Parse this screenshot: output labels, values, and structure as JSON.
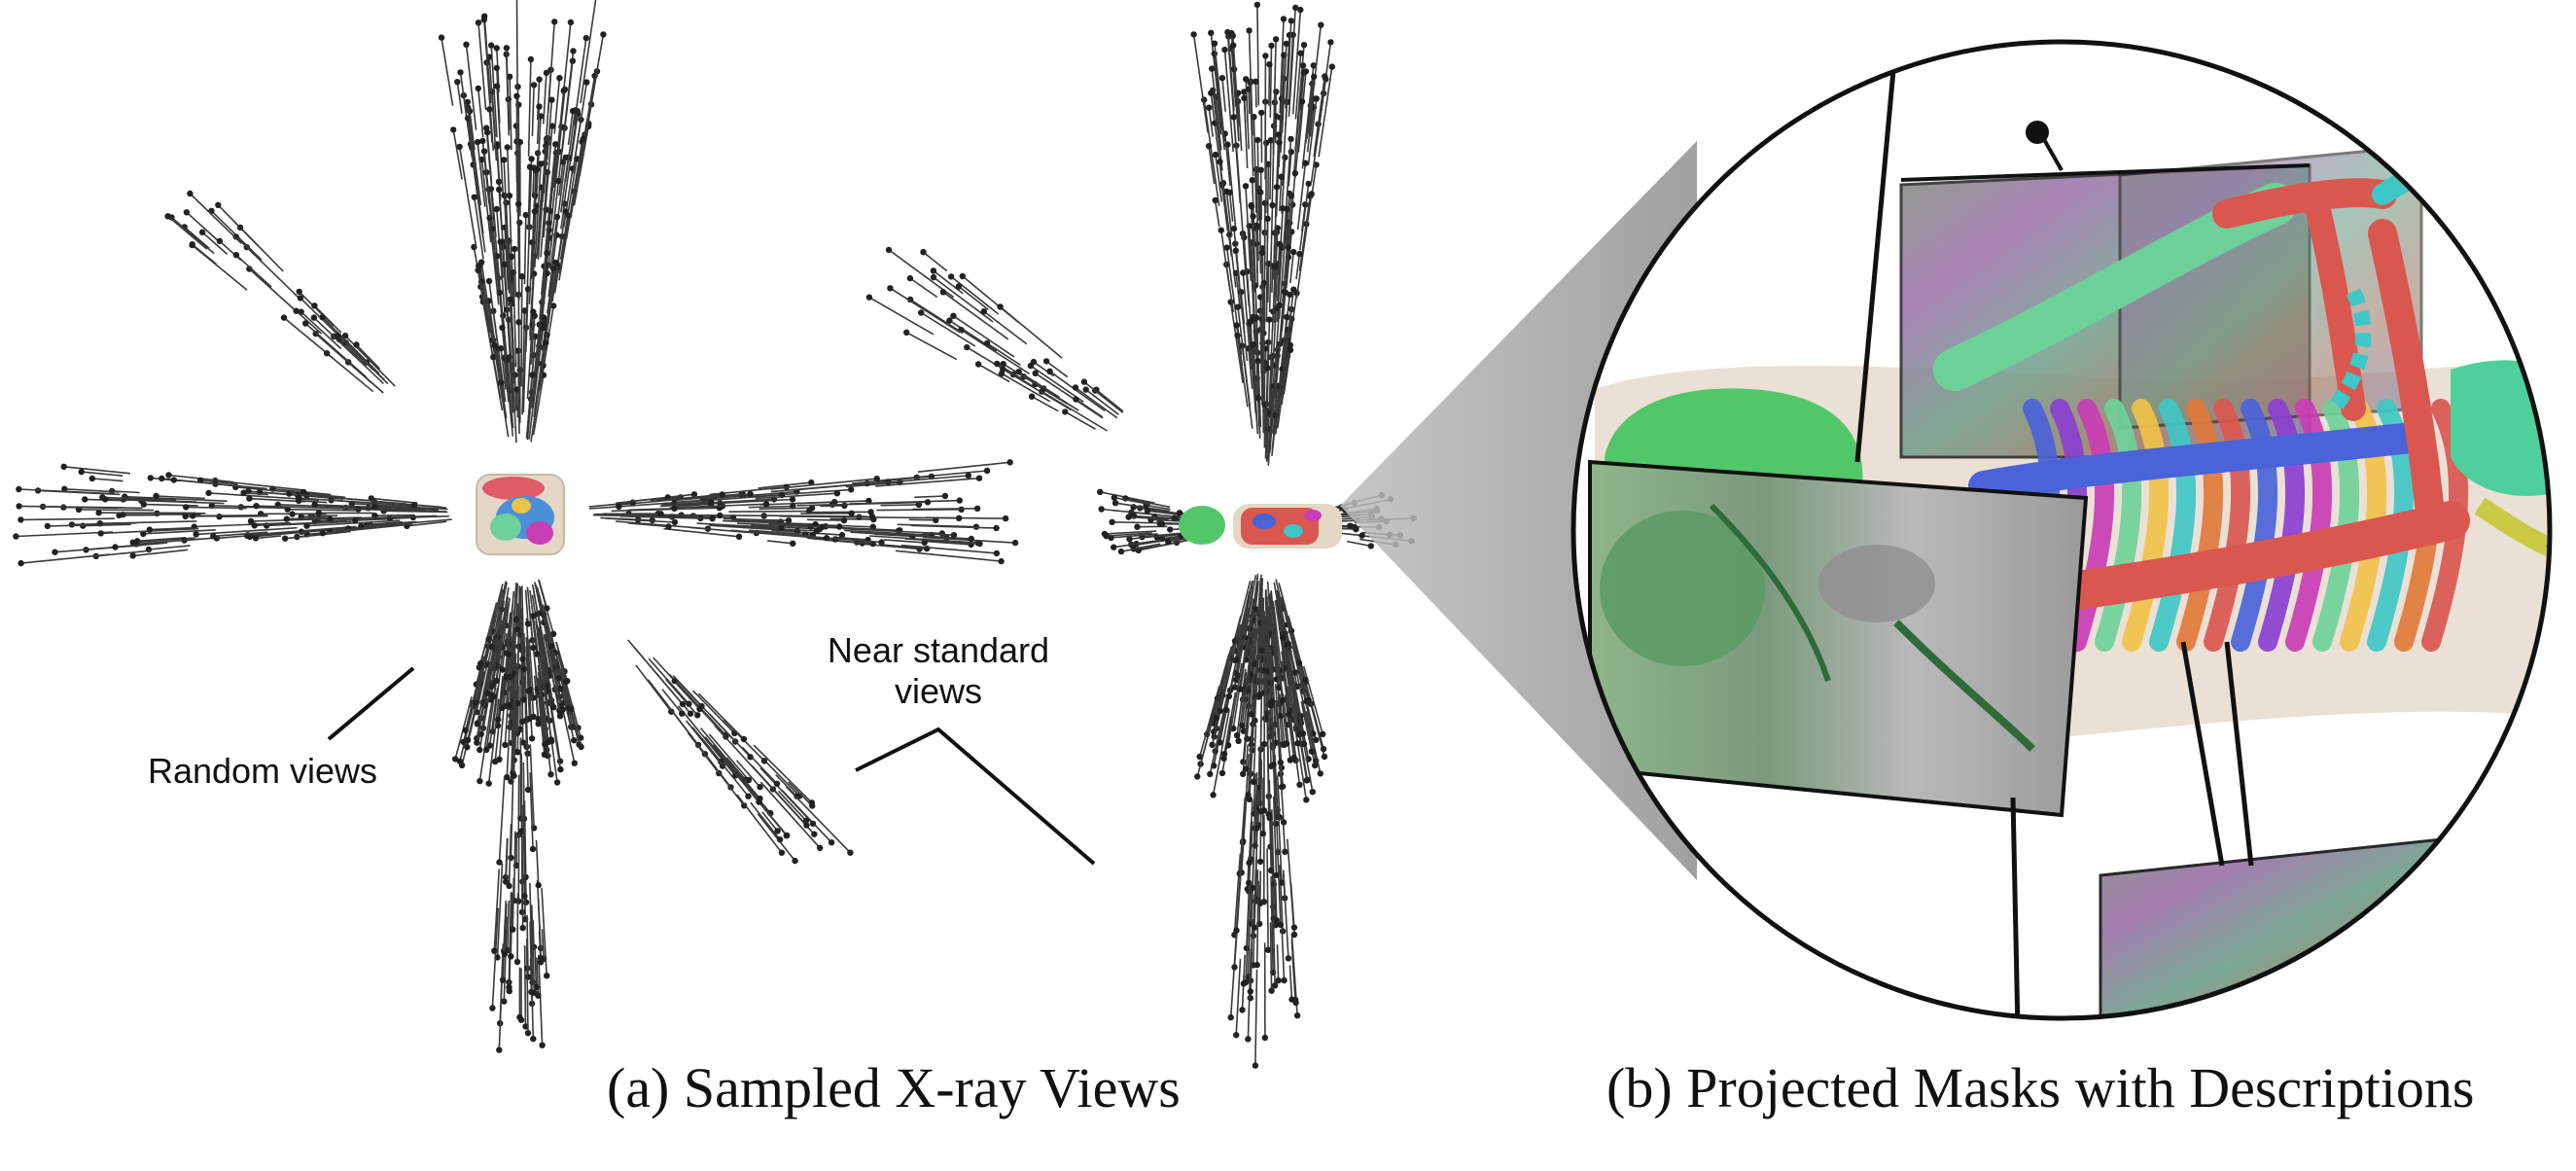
{
  "captions": {
    "a": "(a) Sampled X-ray Views",
    "b": "(b) Projected Masks with Descriptions"
  },
  "annotations": {
    "random_views": "Random views",
    "near_standard_line1": "Near standard",
    "near_standard_line2": "views"
  },
  "colors": {
    "ray": "#3a3a3a",
    "ray_dot": "#222222",
    "magnifier_wedge": "#9a9a9a",
    "circle_stroke": "#111111",
    "skin": "#e9ddd0",
    "bone_red": "#d9574f",
    "bone_green": "#6fd19a",
    "bone_teal": "#3fc7c7",
    "bone_blue": "#4a63d8",
    "bone_magenta": "#c93db5",
    "bone_purple": "#8a3fd0",
    "organ_green": "#52c76a"
  }
}
